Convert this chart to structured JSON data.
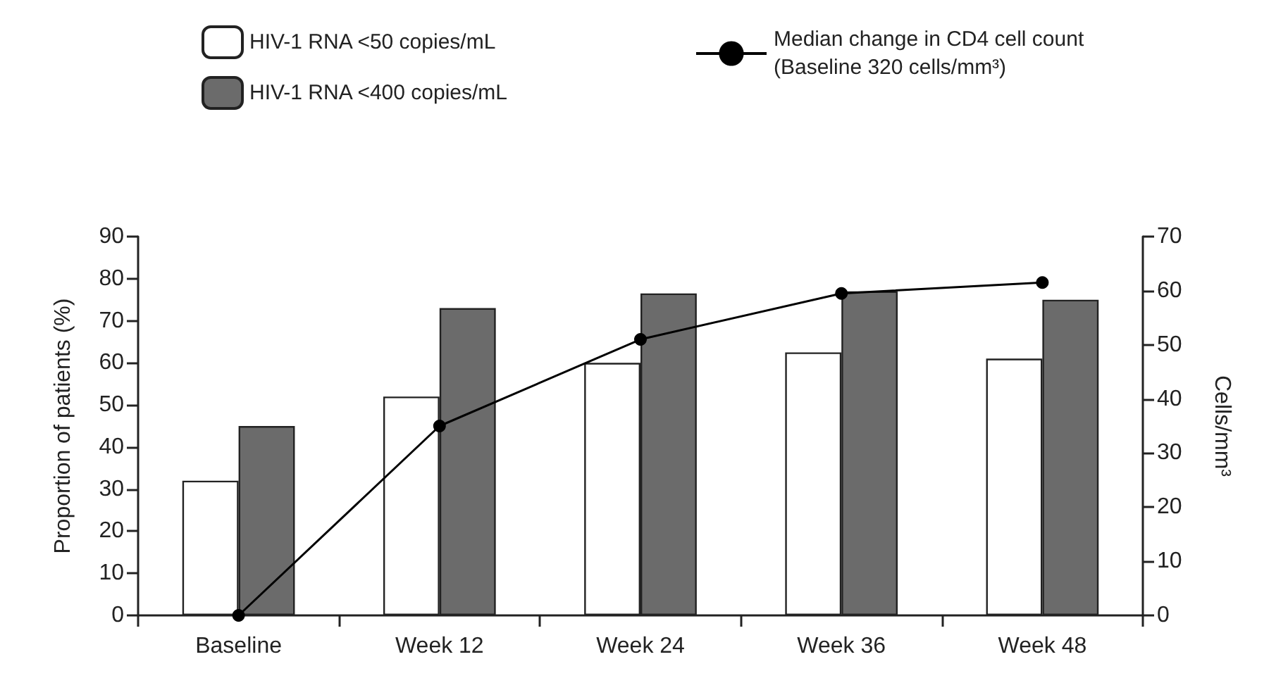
{
  "chart_data": {
    "type": "bar",
    "categories": [
      "Baseline",
      "Week 12",
      "Week 24",
      "Week 36",
      "Week 48"
    ],
    "series": [
      {
        "name": "HIV-1 RNA <50 copies/mL",
        "color": "#ffffff",
        "values": [
          32,
          52,
          60,
          62.5,
          61
        ]
      },
      {
        "name": "HIV-1 RNA <400 copies/mL",
        "color": "#6b6b6b",
        "values": [
          45,
          73,
          76.5,
          77,
          75
        ]
      },
      {
        "name": "Median change in CD4 cell count\n(Baseline 320 cells/mm³)",
        "type": "line",
        "axis": "y2",
        "color": "#000000",
        "values": [
          0,
          35,
          51,
          59.5,
          61.5
        ]
      }
    ],
    "ylabel": "Proportion of patients (%)",
    "y2label": "Cells/mm³",
    "ylim": [
      0,
      90
    ],
    "yticks": [
      0,
      10,
      20,
      30,
      40,
      50,
      60,
      70,
      80,
      90
    ],
    "y2lim": [
      0,
      70
    ],
    "y2ticks": [
      0,
      10,
      20,
      30,
      40,
      50,
      60,
      70
    ],
    "legend": "top",
    "grid": false,
    "marker": "circle",
    "line_style": "solid"
  }
}
